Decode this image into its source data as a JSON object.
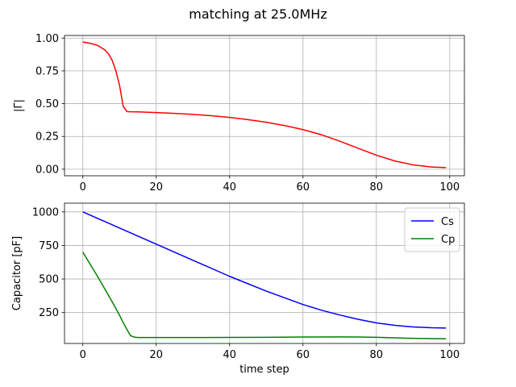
{
  "figure": {
    "title": "matching at 25.0MHz"
  },
  "chart_data": [
    {
      "type": "line",
      "title": "",
      "xlabel": "",
      "ylabel": "|Γ|",
      "xlim": [
        -5,
        104
      ],
      "ylim": [
        -0.05,
        1.02
      ],
      "xticks": [
        0,
        20,
        40,
        60,
        80,
        100
      ],
      "yticks": [
        0.0,
        0.25,
        0.5,
        0.75,
        1.0
      ],
      "ytick_labels": [
        "0.00",
        "0.25",
        "0.50",
        "0.75",
        "1.00"
      ],
      "grid": true,
      "legend": null,
      "series": [
        {
          "color": "#ff0000",
          "x": [
            0,
            2,
            4,
            6,
            7,
            8,
            9,
            10,
            11,
            12,
            13,
            15,
            20,
            25,
            30,
            35,
            40,
            45,
            50,
            55,
            60,
            65,
            70,
            75,
            80,
            85,
            90,
            95,
            99
          ],
          "y": [
            0.97,
            0.96,
            0.945,
            0.91,
            0.88,
            0.83,
            0.75,
            0.64,
            0.48,
            0.44,
            0.438,
            0.437,
            0.432,
            0.426,
            0.418,
            0.408,
            0.395,
            0.378,
            0.358,
            0.333,
            0.302,
            0.263,
            0.214,
            0.16,
            0.107,
            0.063,
            0.033,
            0.017,
            0.012
          ]
        }
      ]
    },
    {
      "type": "line",
      "title": "",
      "xlabel": "time step",
      "ylabel": "Capacitor [pF]",
      "xlim": [
        -5,
        104
      ],
      "ylim": [
        20,
        1065
      ],
      "xticks": [
        0,
        20,
        40,
        60,
        80,
        100
      ],
      "yticks": [
        250,
        500,
        750,
        1000
      ],
      "grid": true,
      "legend": "top-right",
      "series": [
        {
          "name": "Cs",
          "color": "#0000ff",
          "x": [
            0,
            10,
            20,
            30,
            40,
            50,
            60,
            65,
            70,
            75,
            80,
            85,
            90,
            95,
            99
          ],
          "y": [
            1000,
            880,
            760,
            640,
            520,
            410,
            310,
            268,
            232,
            200,
            173,
            155,
            143,
            137,
            135
          ]
        },
        {
          "name": "Cp",
          "color": "#008000",
          "x": [
            0,
            2,
            4,
            6,
            8,
            10,
            11,
            12,
            13,
            14,
            15,
            20,
            30,
            40,
            50,
            60,
            70,
            75,
            80,
            85,
            90,
            95,
            99
          ],
          "y": [
            700,
            610,
            520,
            425,
            330,
            230,
            175,
            125,
            78,
            67,
            64,
            64,
            64,
            65,
            66,
            68,
            69,
            68,
            66,
            62,
            58,
            56,
            55
          ]
        }
      ]
    }
  ]
}
